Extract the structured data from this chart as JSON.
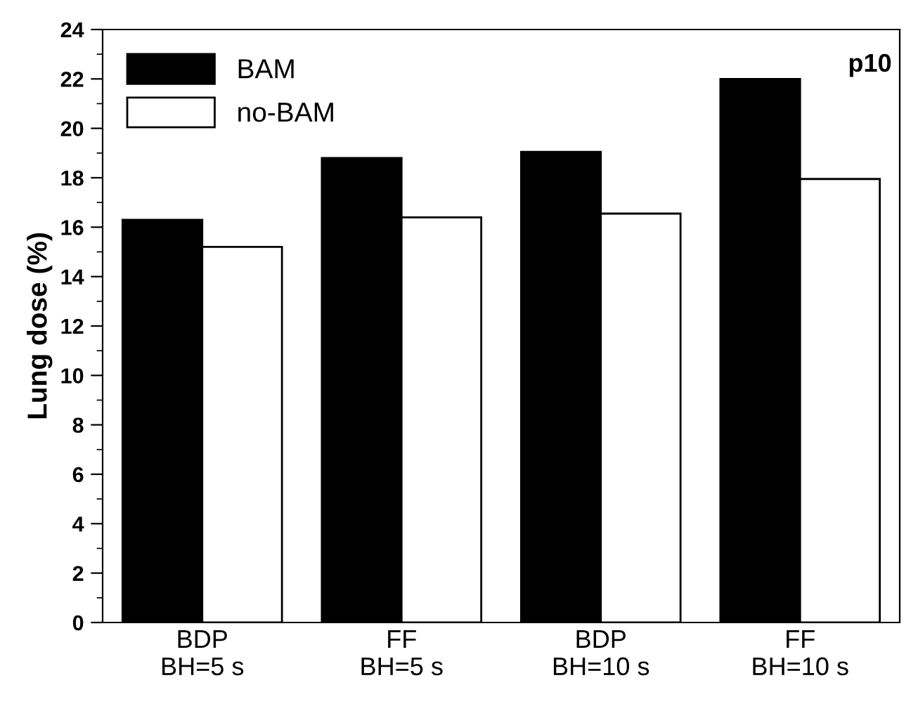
{
  "chart_data": {
    "type": "bar",
    "ylabel": "Lung dose (%)",
    "categories": [
      "BDP\nBH=5 s",
      "FF\nBH=5 s",
      "BDP\nBH=10 s",
      "FF\nBH=10 s"
    ],
    "series": [
      {
        "name": "BAM",
        "color": "#000000",
        "values": [
          16.3,
          18.8,
          19.05,
          22.0
        ]
      },
      {
        "name": "no-BAM",
        "color": "#ffffff",
        "values": [
          15.2,
          16.4,
          16.55,
          17.95
        ]
      }
    ],
    "ylim": [
      0,
      24
    ],
    "yticks": [
      0,
      2,
      4,
      6,
      8,
      10,
      12,
      14,
      16,
      18,
      20,
      22,
      24
    ],
    "grid": false,
    "legend": "top left",
    "annotations": [
      "p10"
    ]
  }
}
